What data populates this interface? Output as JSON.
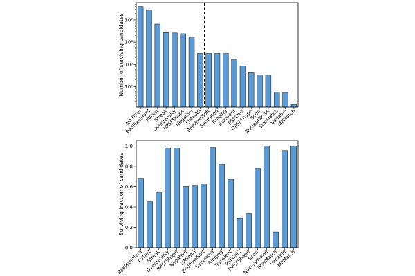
{
  "chart_data": [
    {
      "type": "bar",
      "yscale": "log",
      "ylabel": "Number of surviving candidates",
      "categories": [
        "No Filter",
        "BadPixelHard",
        "PVDist",
        "Streak",
        "Overdensity",
        "NPSFShape",
        "Negative",
        "LIMMAG",
        "BadPixelSoft",
        "Saturated",
        "Ringing",
        "Transient",
        "PSFChi2",
        "DPSFShape",
        "Scorr",
        "NuclearNoise",
        "StarMatch",
        "Variable",
        "MPMatch"
      ],
      "values": [
        40000000,
        28000000,
        6500000,
        2700000,
        2600000,
        2400000,
        1700000,
        310000,
        310000,
        310000,
        305000,
        170000,
        85000,
        42000,
        33000,
        33000,
        5500,
        5400,
        1550
      ],
      "ylim": [
        1200,
        60000000
      ],
      "yticks": [
        {
          "value": 10000,
          "label": "10⁴"
        },
        {
          "value": 100000,
          "label": "10⁵"
        },
        {
          "value": 1000000,
          "label": "10⁶"
        },
        {
          "value": 10000000,
          "label": "10⁷"
        }
      ],
      "vline_after_category": "LIMMAG",
      "vline_style": "dashed",
      "bar_color": "#5b9bd5",
      "edge_color": "#2a2a2a"
    },
    {
      "type": "bar",
      "ylabel": "Surviving fraction of candidates",
      "categories": [
        "BadPixelHard",
        "PVDist",
        "Streak",
        "Overdensity",
        "NPSFShape",
        "Negative",
        "LIMMAG",
        "BadPixelSoft",
        "Saturated",
        "Ringing",
        "Transient",
        "PSFChi2",
        "DPSFShape",
        "Scorr",
        "NuclearNoise",
        "StarMatch",
        "Variable",
        "MPMatch"
      ],
      "values": [
        0.68,
        0.45,
        0.545,
        0.98,
        0.978,
        0.6,
        0.612,
        0.625,
        0.985,
        0.82,
        0.67,
        0.29,
        0.335,
        0.775,
        1.0,
        0.155,
        0.95,
        1.0
      ],
      "ylim": [
        0.0,
        1.05
      ],
      "yticks": [
        {
          "value": 0.0,
          "label": "0.0"
        },
        {
          "value": 0.2,
          "label": "0.2"
        },
        {
          "value": 0.4,
          "label": "0.4"
        },
        {
          "value": 0.6,
          "label": "0.6"
        },
        {
          "value": 0.8,
          "label": "0.8"
        },
        {
          "value": 1.0,
          "label": "1.0"
        }
      ],
      "bar_color": "#5b9bd5",
      "edge_color": "#2a2a2a"
    }
  ]
}
